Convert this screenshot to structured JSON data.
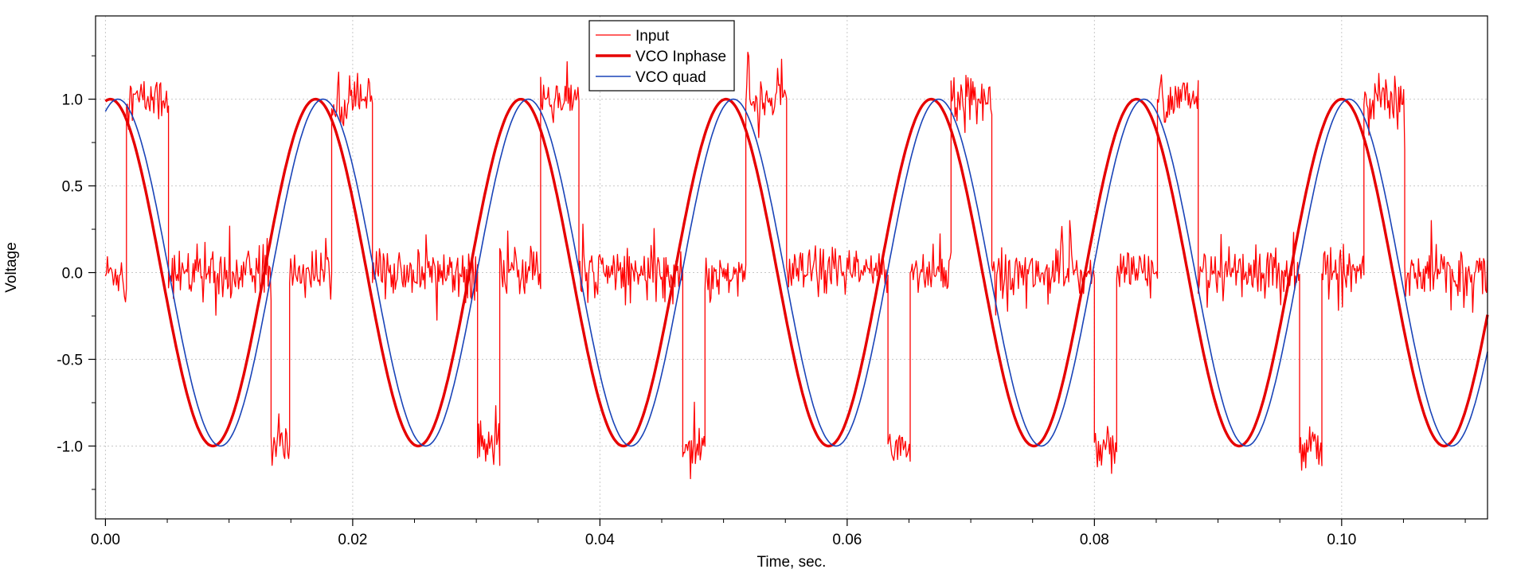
{
  "chart_data": {
    "type": "line",
    "title": "",
    "xlabel": "Time, sec.",
    "ylabel": "Voltage",
    "xlim": [
      -0.0008,
      0.1118
    ],
    "ylim": [
      -1.42,
      1.48
    ],
    "x_ticks": [
      0.0,
      0.02,
      0.04,
      0.06,
      0.08,
      0.1
    ],
    "x_tick_labels": [
      "0.00",
      "0.02",
      "0.04",
      "0.06",
      "0.08",
      "0.10"
    ],
    "y_ticks": [
      1.0,
      0.5,
      0.0,
      -0.5,
      -1.0
    ],
    "y_tick_labels": [
      "1.0",
      "0.5",
      "0.0",
      "-0.5",
      "-1.0"
    ],
    "grid": true,
    "legend_position": "top-center",
    "series": [
      {
        "name": "Input",
        "color": "#ff0000",
        "style": "thin",
        "segments": [
          {
            "x": [
              0.0,
              0.0017
            ],
            "level": 0.0
          },
          {
            "x": [
              0.0017,
              0.0051
            ],
            "level": 1.0
          },
          {
            "x": [
              0.0051,
              0.0134
            ],
            "level": 0.0
          },
          {
            "x": [
              0.0134,
              0.0149
            ],
            "level": -1.0
          },
          {
            "x": [
              0.0149,
              0.0183
            ],
            "level": 0.0
          },
          {
            "x": [
              0.0183,
              0.0216
            ],
            "level": 1.0
          },
          {
            "x": [
              0.0216,
              0.0301
            ],
            "level": 0.0
          },
          {
            "x": [
              0.0301,
              0.0319
            ],
            "level": -1.0
          },
          {
            "x": [
              0.0319,
              0.0352
            ],
            "level": 0.0
          },
          {
            "x": [
              0.0352,
              0.0383
            ],
            "level": 1.0
          },
          {
            "x": [
              0.0383,
              0.0467
            ],
            "level": 0.0
          },
          {
            "x": [
              0.0467,
              0.0485
            ],
            "level": -1.0
          },
          {
            "x": [
              0.0485,
              0.0518
            ],
            "level": 0.0
          },
          {
            "x": [
              0.0518,
              0.0551
            ],
            "level": 1.0
          },
          {
            "x": [
              0.0551,
              0.0633
            ],
            "level": 0.0
          },
          {
            "x": [
              0.0633,
              0.0651
            ],
            "level": -1.0
          },
          {
            "x": [
              0.0651,
              0.0684
            ],
            "level": 0.0
          },
          {
            "x": [
              0.0684,
              0.0717
            ],
            "level": 1.0
          },
          {
            "x": [
              0.0717,
              0.08
            ],
            "level": 0.0
          },
          {
            "x": [
              0.08,
              0.0818
            ],
            "level": -1.0
          },
          {
            "x": [
              0.0818,
              0.0851
            ],
            "level": 0.0
          },
          {
            "x": [
              0.0851,
              0.0884
            ],
            "level": 1.0
          },
          {
            "x": [
              0.0884,
              0.0966
            ],
            "level": 0.0
          },
          {
            "x": [
              0.0966,
              0.0984
            ],
            "level": -1.0
          },
          {
            "x": [
              0.0984,
              0.1018
            ],
            "level": 0.0
          },
          {
            "x": [
              0.1018,
              0.1051
            ],
            "level": 1.0
          },
          {
            "x": [
              0.1051,
              0.1118
            ],
            "level": 0.0
          }
        ],
        "noise_amplitude": 0.12
      },
      {
        "name": "VCO Inphase",
        "color": "#e60000",
        "style": "thick",
        "function": "sine",
        "amplitude": 1.0,
        "period": 0.0166,
        "peak_x": 0.017,
        "x_range": [
          0.0,
          0.1118
        ]
      },
      {
        "name": "VCO quad",
        "color": "#1a44b8",
        "style": "thin",
        "function": "sine",
        "amplitude": 1.0,
        "period": 0.0166,
        "peak_x": 0.001,
        "x_range": [
          0.0,
          0.1118
        ]
      }
    ]
  }
}
